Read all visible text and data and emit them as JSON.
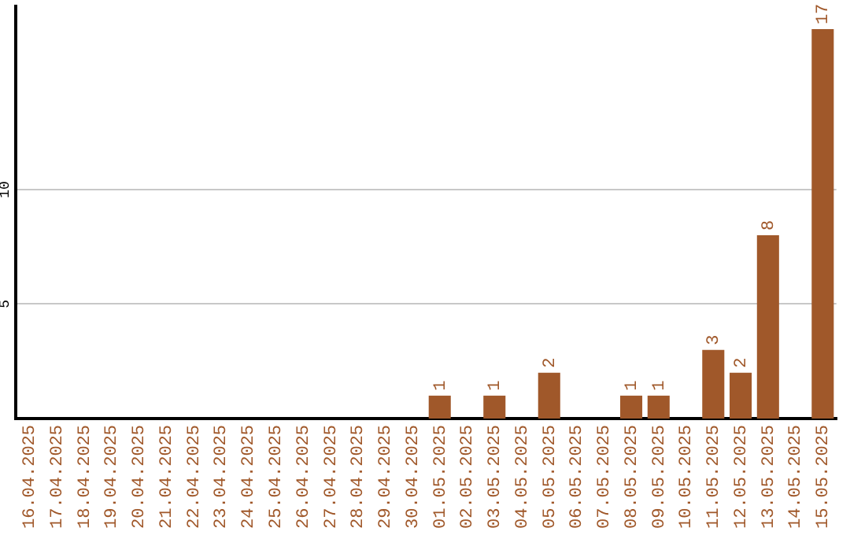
{
  "chart_data": {
    "type": "bar",
    "categories": [
      "16.04.2025",
      "17.04.2025",
      "18.04.2025",
      "19.04.2025",
      "20.04.2025",
      "21.04.2025",
      "22.04.2025",
      "23.04.2025",
      "24.04.2025",
      "25.04.2025",
      "26.04.2025",
      "27.04.2025",
      "28.04.2025",
      "29.04.2025",
      "30.04.2025",
      "01.05.2025",
      "02.05.2025",
      "03.05.2025",
      "04.05.2025",
      "05.05.2025",
      "06.05.2025",
      "07.05.2025",
      "08.05.2025",
      "09.05.2025",
      "10.05.2025",
      "11.05.2025",
      "12.05.2025",
      "13.05.2025",
      "14.05.2025",
      "15.05.2025"
    ],
    "values": [
      0,
      0,
      0,
      0,
      0,
      0,
      0,
      0,
      0,
      0,
      0,
      0,
      0,
      0,
      0,
      1,
      0,
      1,
      0,
      2,
      0,
      0,
      1,
      1,
      0,
      3,
      2,
      8,
      0,
      17
    ],
    "value_labels": [
      null,
      null,
      null,
      null,
      null,
      null,
      null,
      null,
      null,
      null,
      null,
      null,
      null,
      null,
      null,
      "1",
      null,
      "1",
      null,
      "2",
      null,
      null,
      "1",
      "1",
      null,
      "3",
      "2",
      "8",
      null,
      "17"
    ],
    "color": "#a0582a",
    "ylim": [
      0,
      18
    ],
    "yticks": [
      5,
      10
    ],
    "grid": "y",
    "legend": false
  }
}
